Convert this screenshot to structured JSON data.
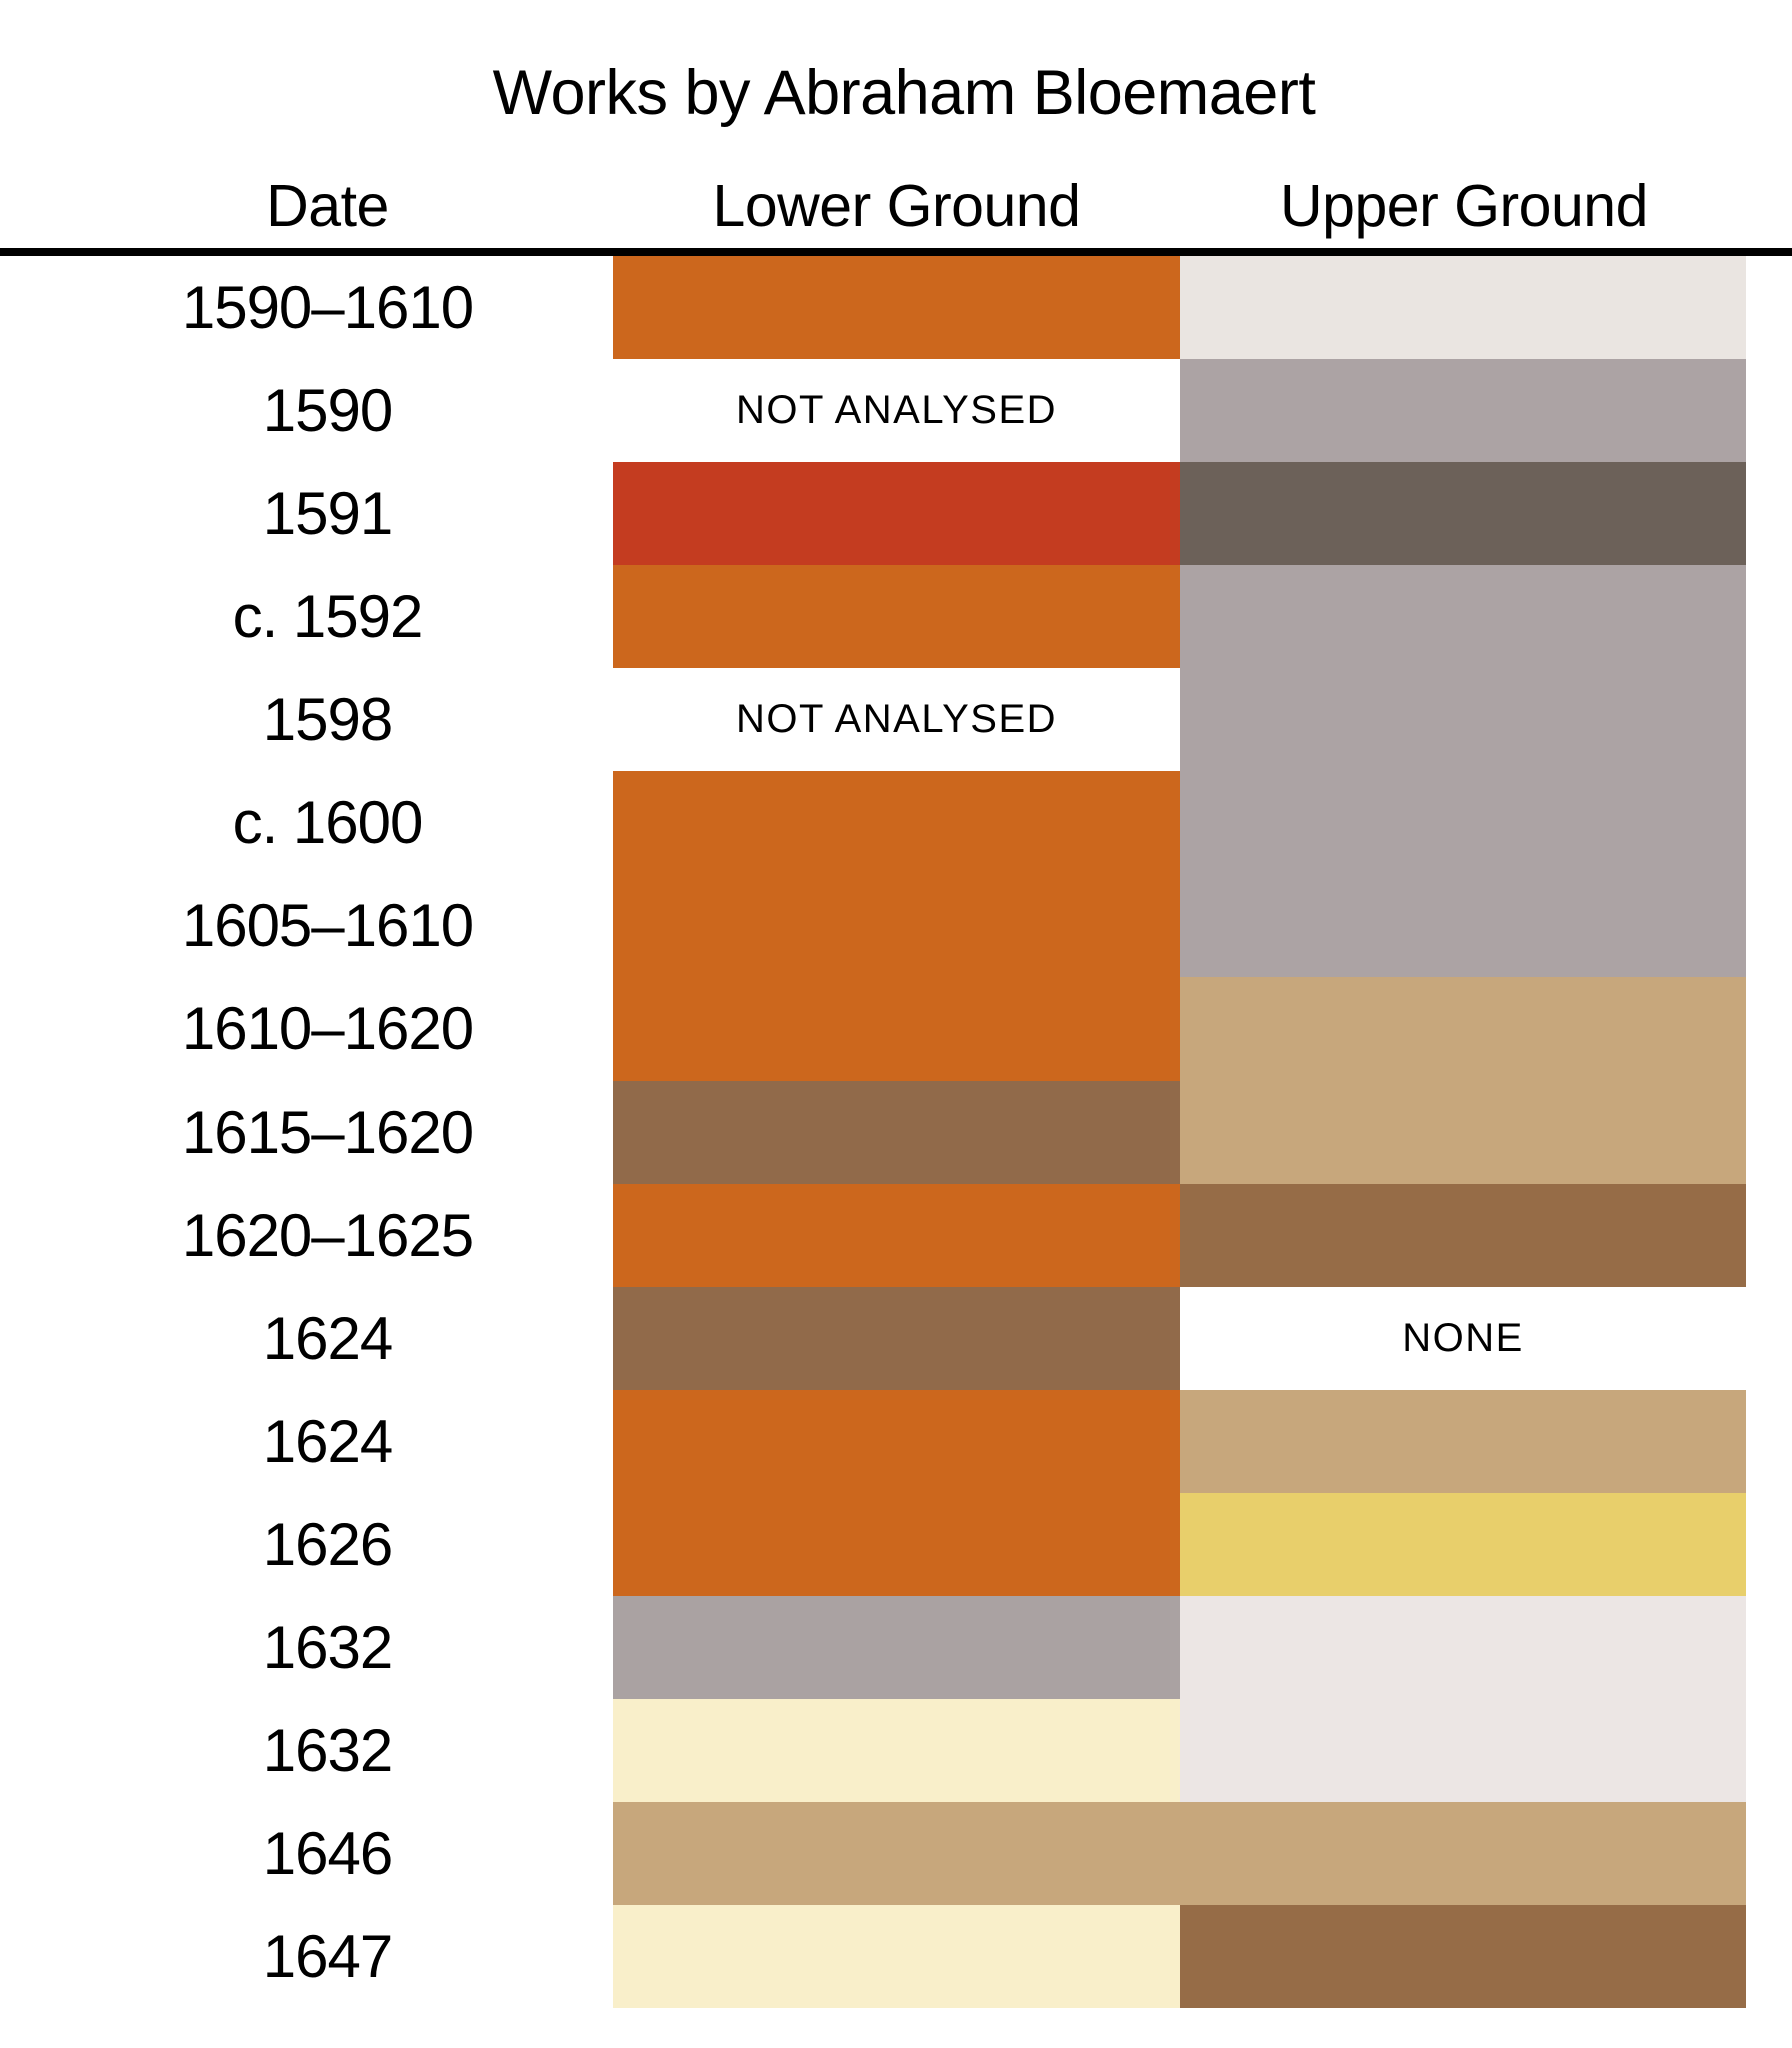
{
  "page": {
    "background": "#ffffff",
    "text_color": "#000000",
    "divider_color": "#000000"
  },
  "chart_data": {
    "type": "table",
    "title": "Works by Abraham Bloemaert",
    "columns": [
      "Date",
      "Lower Ground",
      "Upper Ground"
    ],
    "annotations": {
      "not_analysed": "NOT ANALYSED",
      "none": "NONE"
    },
    "palette": {
      "orange": "#CC671D",
      "red": "#C43C20",
      "brown_lower": "#916A4A",
      "brown_upper": "#966C47",
      "tan": "#C7A77C",
      "yellow": "#E8CF6B",
      "cream": "#F9EFCA",
      "gray_light_warm": "#EAE5E1",
      "gray_light_pink": "#ECE6E4",
      "gray_medium": "#ACA3A4",
      "gray_lower": "#AAA2A2",
      "gray_dark": "#6C6159"
    },
    "rows": [
      {
        "date": "1590–1610",
        "lower": {
          "color": "#CC671D"
        },
        "upper": {
          "color": "#EAE5E1"
        }
      },
      {
        "date": "1590",
        "lower": {
          "text": "NOT ANALYSED"
        },
        "upper": {
          "color": "#ACA3A4"
        }
      },
      {
        "date": "1591",
        "lower": {
          "color": "#C43C20"
        },
        "upper": {
          "color": "#6C6159"
        }
      },
      {
        "date": "c. 1592",
        "lower": {
          "color": "#CC671D"
        },
        "upper": {
          "color": "#ACA3A4"
        }
      },
      {
        "date": "1598",
        "lower": {
          "text": "NOT ANALYSED"
        },
        "upper": {
          "color": "#ACA3A4"
        }
      },
      {
        "date": "c. 1600",
        "lower": {
          "color": "#CC671D"
        },
        "upper": {
          "color": "#ACA3A4"
        }
      },
      {
        "date": "1605–1610",
        "lower": {
          "color": "#CC671D"
        },
        "upper": {
          "color": "#ACA3A4"
        }
      },
      {
        "date": "1610–1620",
        "lower": {
          "color": "#CC671D"
        },
        "upper": {
          "color": "#C7A77C"
        }
      },
      {
        "date": "1615–1620",
        "lower": {
          "color": "#916A4A"
        },
        "upper": {
          "color": "#C7A77C"
        }
      },
      {
        "date": "1620–1625",
        "lower": {
          "color": "#CC671D"
        },
        "upper": {
          "color": "#966C47"
        }
      },
      {
        "date": "1624",
        "lower": {
          "color": "#916A4A"
        },
        "upper": {
          "text": "NONE"
        }
      },
      {
        "date": "1624",
        "lower": {
          "color": "#CC671D"
        },
        "upper": {
          "color": "#C7A77C"
        }
      },
      {
        "date": "1626",
        "lower": {
          "color": "#CC671D"
        },
        "upper": {
          "color": "#E8CF6B"
        }
      },
      {
        "date": "1632",
        "lower": {
          "color": "#AAA2A2"
        },
        "upper": {
          "color": "#ECE6E4"
        }
      },
      {
        "date": "1632",
        "lower": {
          "color": "#F9EFCA"
        },
        "upper": {
          "color": "#ECE6E4"
        }
      },
      {
        "date": "1646",
        "lower": {
          "color": "#C7A77C"
        },
        "upper": {
          "color": "#C7A77C"
        }
      },
      {
        "date": "1647",
        "lower": {
          "color": "#F9EFCA"
        },
        "upper": {
          "color": "#966C47"
        }
      }
    ]
  }
}
